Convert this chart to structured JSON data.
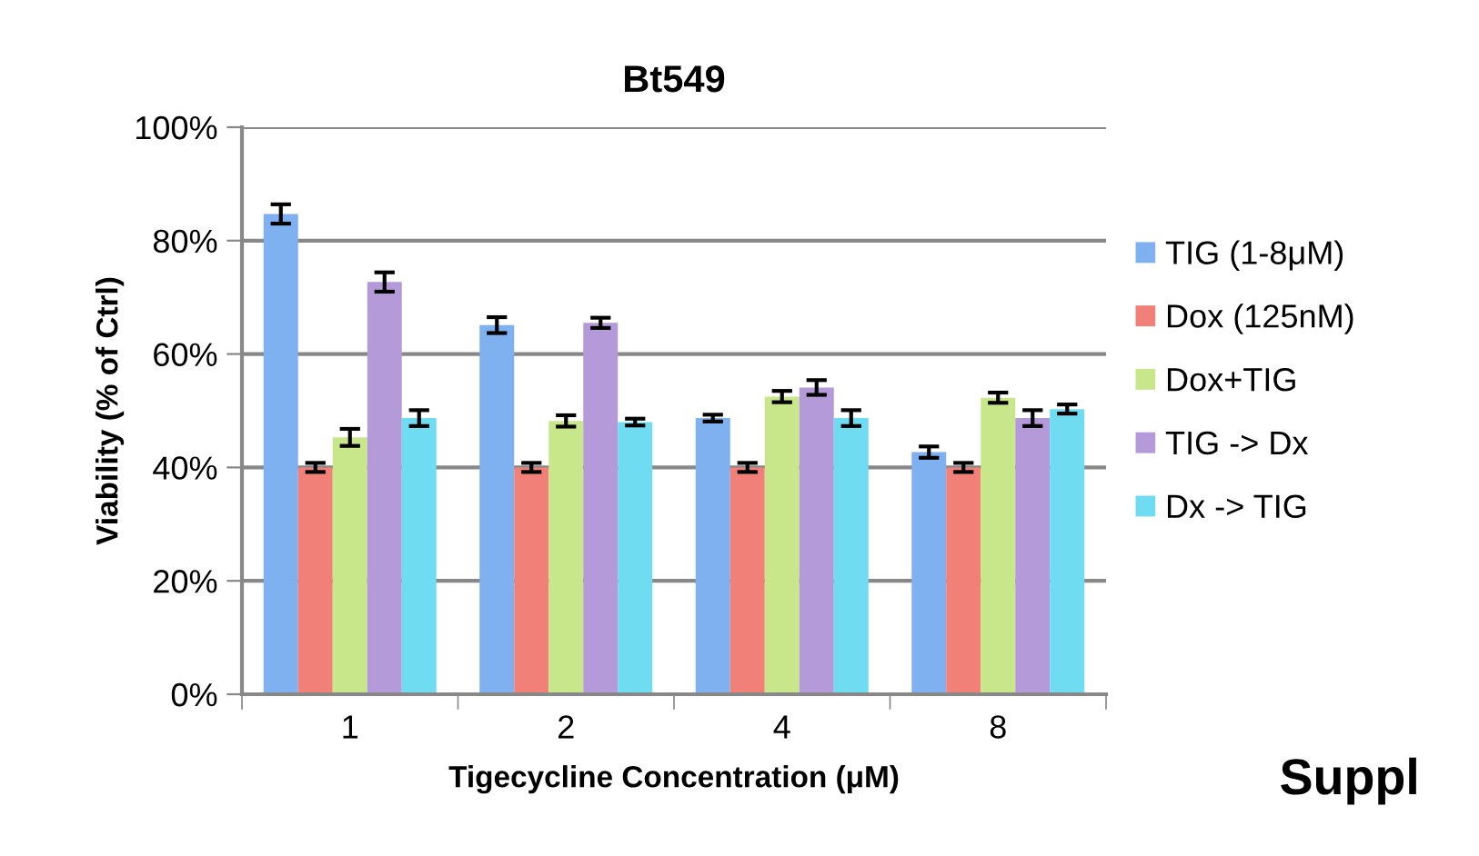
{
  "chart_data": {
    "type": "bar",
    "title": "Bt549",
    "xlabel": "Tigecycline Concentration (μM)",
    "ylabel": "Viability (% of Ctrl)",
    "categories": [
      "1",
      "2",
      "4",
      "8"
    ],
    "series": [
      {
        "name": "TIG (1-8μM)",
        "color": "#7fb0f0",
        "values": [
          84.7,
          65.1,
          48.7,
          42.7
        ],
        "errors": [
          1.7,
          1.4,
          0.6,
          1.0
        ]
      },
      {
        "name": "Dox (125nM)",
        "color": "#f08078",
        "values": [
          40,
          40,
          40,
          40
        ],
        "errors": [
          0.8,
          0.8,
          0.8,
          0.8
        ]
      },
      {
        "name": "Dox+TIG",
        "color": "#c8e68a",
        "values": [
          45.3,
          48.2,
          52.5,
          52.3
        ],
        "errors": [
          1.5,
          1.0,
          1.0,
          0.9
        ]
      },
      {
        "name": "TIG -> Dx",
        "color": "#b49ad8",
        "values": [
          72.7,
          65.5,
          54.1,
          48.7
        ],
        "errors": [
          1.7,
          0.9,
          1.3,
          1.4
        ]
      },
      {
        "name": "Dx -> TIG",
        "color": "#6fdcf2",
        "values": [
          48.7,
          48.0,
          48.7,
          50.3
        ],
        "errors": [
          1.4,
          0.6,
          1.4,
          0.8
        ]
      }
    ],
    "ylim": [
      0,
      100
    ],
    "yticks": [
      {
        "value": 0,
        "label": "0%"
      },
      {
        "value": 20,
        "label": "20%"
      },
      {
        "value": 40,
        "label": "40%"
      },
      {
        "value": 60,
        "label": "60%"
      },
      {
        "value": 80,
        "label": "80%"
      },
      {
        "value": 100,
        "label": "100%"
      }
    ],
    "grid": "y",
    "legend": "right",
    "annotations": [
      "Suppl"
    ]
  }
}
